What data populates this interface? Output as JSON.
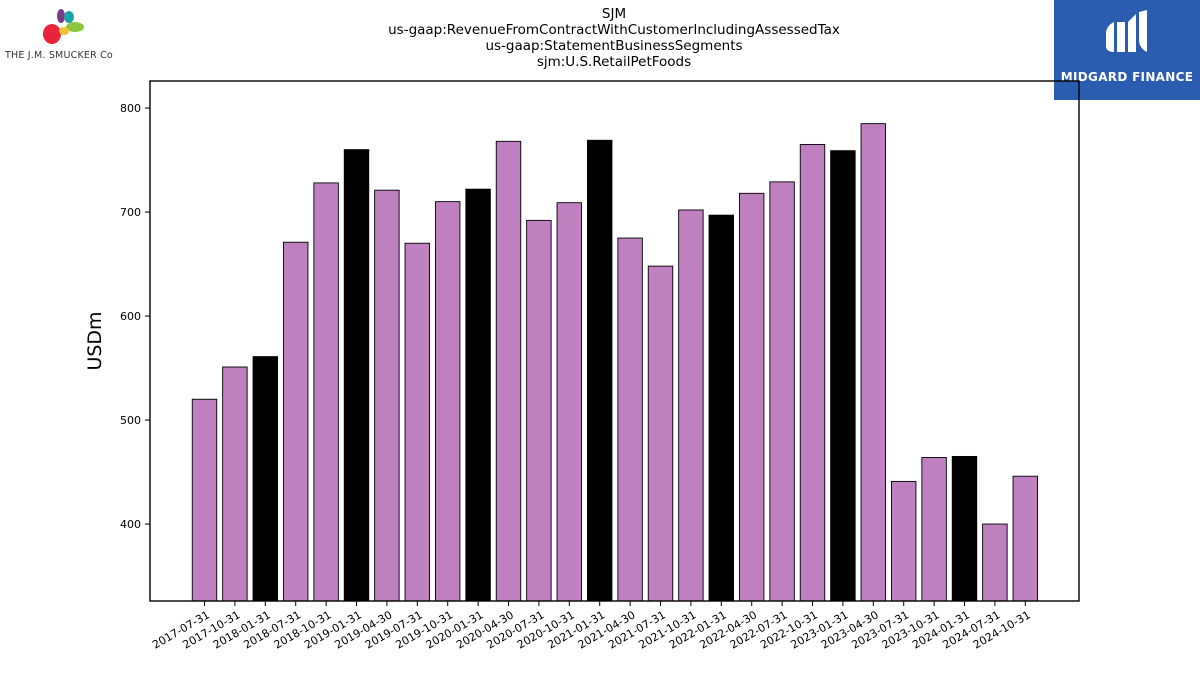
{
  "brand": {
    "logo_text": "THE J.M. SMUCKER Co"
  },
  "partner": {
    "logo_text": "MIDGARD FINANCE",
    "color": "#2a5db0"
  },
  "title_lines": [
    "SJM",
    "us-gaap:RevenueFromContractWithCustomerIncludingAssessedTax",
    "us-gaap:StatementBusinessSegments",
    "sjm:U.S.RetailPetFoods"
  ],
  "chart_data": {
    "type": "bar",
    "categories": [
      "2017-07-31",
      "2017-10-31",
      "2018-01-31",
      "2018-07-31",
      "2018-10-31",
      "2019-01-31",
      "2019-04-30",
      "2019-07-31",
      "2019-10-31",
      "2020-01-31",
      "2020-04-30",
      "2020-07-31",
      "2020-10-31",
      "2021-01-31",
      "2021-04-30",
      "2021-07-31",
      "2021-10-31",
      "2022-01-31",
      "2022-04-30",
      "2022-07-31",
      "2022-10-31",
      "2023-01-31",
      "2023-04-30",
      "2023-07-31",
      "2023-10-31",
      "2024-01-31",
      "2024-07-31",
      "2024-10-31"
    ],
    "values": [
      520,
      551,
      561,
      671,
      728,
      760,
      721,
      670,
      710,
      722,
      768,
      692,
      709,
      769,
      675,
      648,
      702,
      697,
      718,
      729,
      765,
      759,
      785,
      441,
      464,
      465,
      400,
      446
    ],
    "highlight": [
      false,
      false,
      true,
      false,
      false,
      true,
      false,
      false,
      false,
      true,
      false,
      false,
      false,
      true,
      false,
      false,
      false,
      true,
      false,
      false,
      false,
      true,
      false,
      false,
      false,
      true,
      false,
      false
    ],
    "colors": {
      "default": "#bf80bf",
      "highlight": "#000000",
      "edge": "#000000"
    },
    "ylabel": "USDm",
    "ylim": [
      326,
      826
    ],
    "yticks": [
      400,
      500,
      600,
      700,
      800
    ],
    "grid": false
  }
}
